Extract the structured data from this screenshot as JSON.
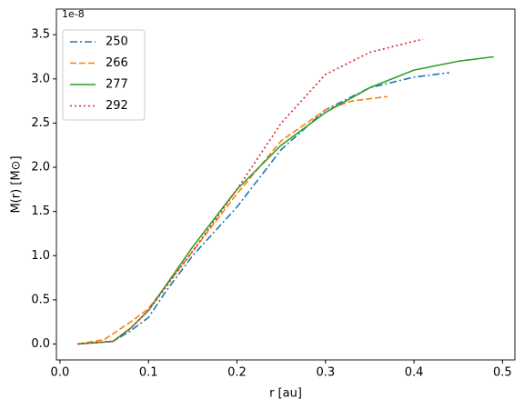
{
  "chart_data": {
    "type": "line",
    "xlabel": "r [au]",
    "ylabel": "M(r) [M⊙]",
    "y_offset_text": "1e-8",
    "xlim": [
      -0.004,
      0.514
    ],
    "ylim": [
      -0.18,
      3.79
    ],
    "xticks": [
      {
        "value": 0,
        "label": "0.0"
      },
      0.1,
      0.2,
      0.3,
      0.4,
      0.5
    ],
    "yticks": [
      {
        "value": 0,
        "label": "0.0"
      },
      0.5,
      {
        "value": 1,
        "label": "1.0"
      },
      1.5,
      {
        "value": 2,
        "label": "2.0"
      },
      2.5,
      {
        "value": 3,
        "label": "3.0"
      },
      3.5
    ],
    "legend": "upper left",
    "grid": false,
    "series": [
      {
        "name": "250",
        "color": "#1f77b4",
        "linestyle": "dashdot",
        "x": [
          0.02,
          0.06,
          0.08,
          0.1,
          0.12,
          0.15,
          0.2,
          0.25,
          0.3,
          0.35,
          0.4,
          0.44
        ],
        "values": [
          0,
          0.03,
          0.15,
          0.3,
          0.6,
          1.0,
          1.55,
          2.2,
          2.65,
          2.9,
          3.02,
          3.07
        ]
      },
      {
        "name": "266",
        "color": "#ff7f0e",
        "linestyle": "dashed",
        "x": [
          0.02,
          0.05,
          0.08,
          0.1,
          0.15,
          0.2,
          0.25,
          0.3,
          0.33,
          0.37
        ],
        "values": [
          0,
          0.05,
          0.25,
          0.4,
          1.05,
          1.7,
          2.3,
          2.65,
          2.75,
          2.8
        ]
      },
      {
        "name": "277",
        "color": "#2ca02c",
        "linestyle": "solid",
        "x": [
          0.02,
          0.06,
          0.08,
          0.1,
          0.15,
          0.2,
          0.25,
          0.3,
          0.35,
          0.4,
          0.45,
          0.49
        ],
        "values": [
          0,
          0.03,
          0.18,
          0.38,
          1.1,
          1.75,
          2.25,
          2.62,
          2.9,
          3.1,
          3.2,
          3.25
        ]
      },
      {
        "name": "292",
        "color": "#d62728",
        "linestyle": "dotted",
        "x": [
          0.02,
          0.06,
          0.08,
          0.1,
          0.15,
          0.2,
          0.25,
          0.3,
          0.35,
          0.41
        ],
        "values": [
          0,
          0.03,
          0.18,
          0.38,
          1.05,
          1.75,
          2.5,
          3.05,
          3.3,
          3.45
        ]
      }
    ]
  }
}
